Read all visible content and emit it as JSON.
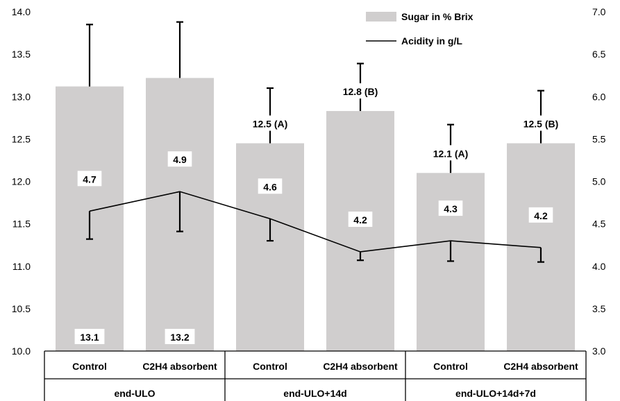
{
  "chart_data": {
    "type": "bar",
    "categories": [
      "Control",
      "C2H4 absorbent",
      "Control",
      "C2H4 absorbent",
      "Control",
      "C2H4 absorbent"
    ],
    "groups": [
      "end-ULO",
      "end-ULO+14d",
      "end-ULO+14d+7d"
    ],
    "left_axis": {
      "ylim": [
        10.0,
        14.0
      ],
      "ticks": [
        "10.0",
        "10.5",
        "11.0",
        "11.5",
        "12.0",
        "12.5",
        "13.0",
        "13.5",
        "14.0"
      ]
    },
    "right_axis": {
      "ylim": [
        3.0,
        7.0
      ],
      "ticks": [
        "3.0",
        "3.5",
        "4.0",
        "4.5",
        "5.0",
        "5.5",
        "6.0",
        "6.5",
        "7.0"
      ]
    },
    "legend_position": "top-right",
    "grid": false,
    "series": [
      {
        "name": "Sugar in % Brix",
        "kind": "bar",
        "axis": "left",
        "values": [
          13.12,
          13.22,
          12.45,
          12.83,
          12.1,
          12.45
        ],
        "error_plus": [
          0.73,
          0.66,
          0.65,
          0.56,
          0.57,
          0.62
        ],
        "labels": [
          "13.1",
          "13.2",
          "12.5 (A)",
          "12.8 (B)",
          "12.1 (A)",
          "12.5 (B)"
        ],
        "color": "#d0cece"
      },
      {
        "name": "Acidity in g/L",
        "kind": "line",
        "axis": "right",
        "values": [
          4.65,
          4.88,
          4.56,
          4.17,
          4.3,
          4.22
        ],
        "error_minus": [
          0.33,
          0.47,
          0.26,
          0.1,
          0.24,
          0.17
        ],
        "labels": [
          "4.7",
          "4.9",
          "4.6",
          "4.2",
          "4.3",
          "4.2"
        ],
        "color": "#000000"
      }
    ]
  }
}
